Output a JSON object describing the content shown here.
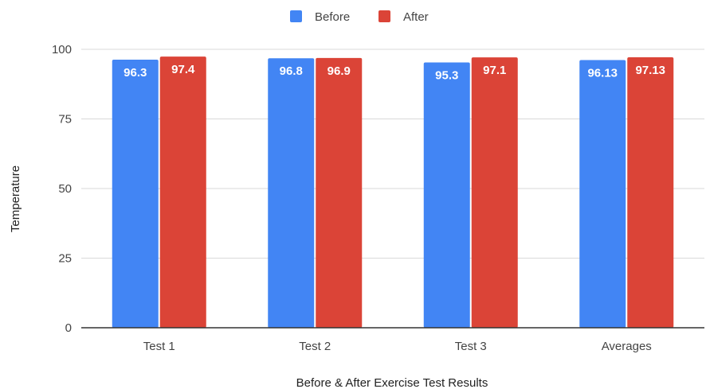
{
  "chart_data": {
    "type": "bar",
    "title": "",
    "xlabel": "Before & After Exercise Test Results",
    "ylabel": "Temperature",
    "categories": [
      "Test 1",
      "Test 2",
      "Test 3",
      "Averages"
    ],
    "series": [
      {
        "name": "Before",
        "color": "#4285f4",
        "values": [
          96.3,
          96.8,
          95.3,
          96.13
        ],
        "labels": [
          "96.3",
          "96.8",
          "95.3",
          "96.13"
        ]
      },
      {
        "name": "After",
        "color": "#db4437",
        "values": [
          97.4,
          96.9,
          97.1,
          97.13
        ],
        "labels": [
          "97.4",
          "96.9",
          "97.1",
          "97.13"
        ]
      }
    ],
    "ylim": [
      0,
      100
    ],
    "yticks": [
      "0",
      "25",
      "50",
      "75",
      "100"
    ],
    "grid": true,
    "legend_position": "top-center"
  }
}
